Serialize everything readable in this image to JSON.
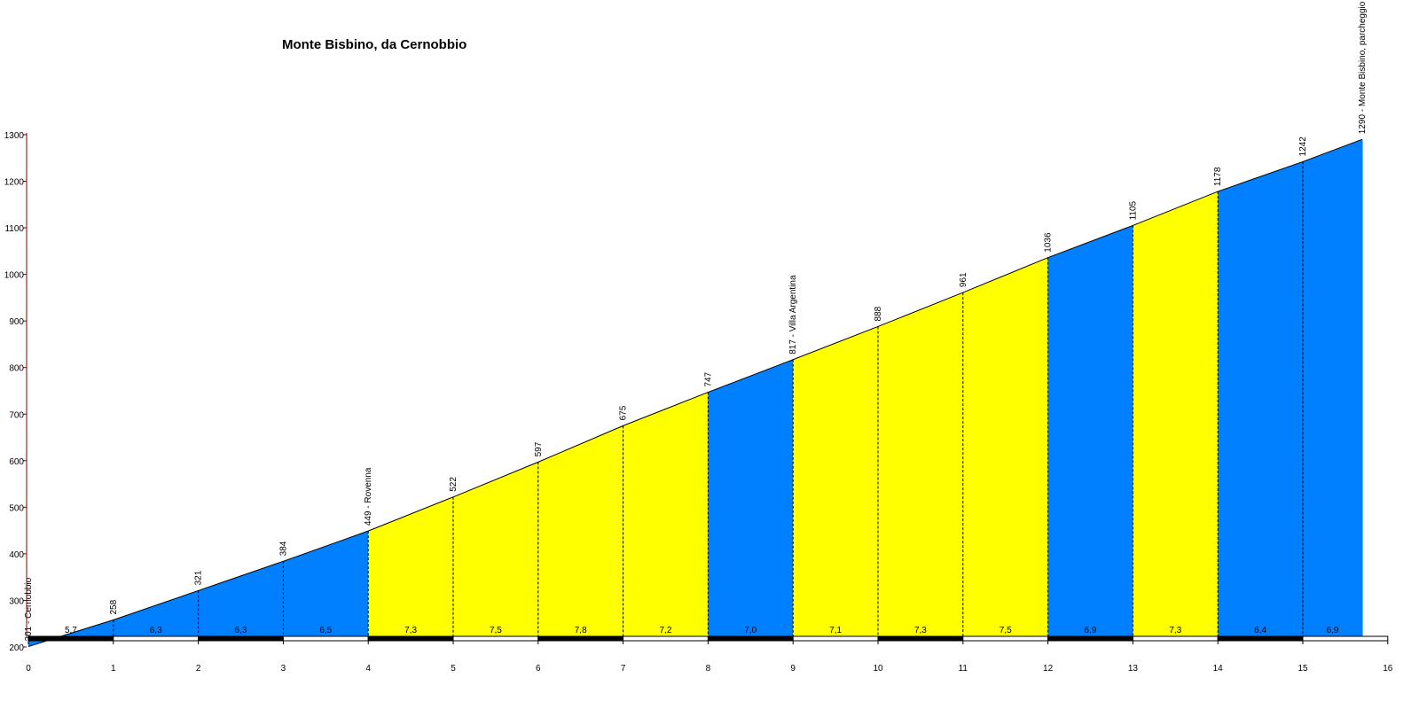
{
  "chart_data": {
    "type": "area",
    "title": "Monte Bisbino, da Cernobbio",
    "xlabel": "",
    "ylabel": "",
    "xlim": [
      0,
      16
    ],
    "ylim": [
      200,
      1300
    ],
    "x_ticks": [
      0,
      1,
      2,
      3,
      4,
      5,
      6,
      7,
      8,
      9,
      10,
      11,
      12,
      13,
      14,
      15,
      16
    ],
    "y_ticks": [
      200,
      300,
      400,
      500,
      600,
      700,
      800,
      900,
      1000,
      1100,
      1200,
      1300
    ],
    "grid": false,
    "x": [
      0,
      1,
      2,
      3,
      4,
      5,
      6,
      7,
      8,
      9,
      10,
      11,
      12,
      13,
      14,
      15,
      15.7
    ],
    "elevation": [
      201,
      258,
      321,
      384,
      449,
      522,
      597,
      675,
      747,
      817,
      888,
      961,
      1036,
      1105,
      1178,
      1242,
      1290
    ],
    "elevation_labels": [
      "201 - Cernobbio",
      "258",
      "321",
      "384",
      "449 - Rovenna",
      "522",
      "597",
      "675",
      "747",
      "817 - Villa Argentina",
      "888",
      "961",
      "1036",
      "1105",
      "1178",
      "1242",
      "1290 - Monte Bisbino, parcheggio"
    ],
    "segments": [
      {
        "from": 0,
        "to": 1,
        "gradient": "5,7",
        "color": "#0080ff"
      },
      {
        "from": 1,
        "to": 2,
        "gradient": "6,3",
        "color": "#0080ff"
      },
      {
        "from": 2,
        "to": 3,
        "gradient": "6,3",
        "color": "#0080ff"
      },
      {
        "from": 3,
        "to": 4,
        "gradient": "6,5",
        "color": "#0080ff"
      },
      {
        "from": 4,
        "to": 5,
        "gradient": "7,3",
        "color": "#ffff00"
      },
      {
        "from": 5,
        "to": 6,
        "gradient": "7,5",
        "color": "#ffff00"
      },
      {
        "from": 6,
        "to": 7,
        "gradient": "7,8",
        "color": "#ffff00"
      },
      {
        "from": 7,
        "to": 8,
        "gradient": "7,2",
        "color": "#ffff00"
      },
      {
        "from": 8,
        "to": 9,
        "gradient": "7,0",
        "color": "#0080ff"
      },
      {
        "from": 9,
        "to": 10,
        "gradient": "7,1",
        "color": "#ffff00"
      },
      {
        "from": 10,
        "to": 11,
        "gradient": "7,3",
        "color": "#ffff00"
      },
      {
        "from": 11,
        "to": 12,
        "gradient": "7,5",
        "color": "#ffff00"
      },
      {
        "from": 12,
        "to": 13,
        "gradient": "6,9",
        "color": "#0080ff"
      },
      {
        "from": 13,
        "to": 14,
        "gradient": "7,3",
        "color": "#ffff00"
      },
      {
        "from": 14,
        "to": 15,
        "gradient": "6,4",
        "color": "#0080ff"
      },
      {
        "from": 15,
        "to": 15.7,
        "gradient": "6,9",
        "color": "#0080ff"
      }
    ],
    "colors": {
      "blue": "#0080ff",
      "yellow": "#ffff00",
      "axis": "#800000"
    }
  }
}
